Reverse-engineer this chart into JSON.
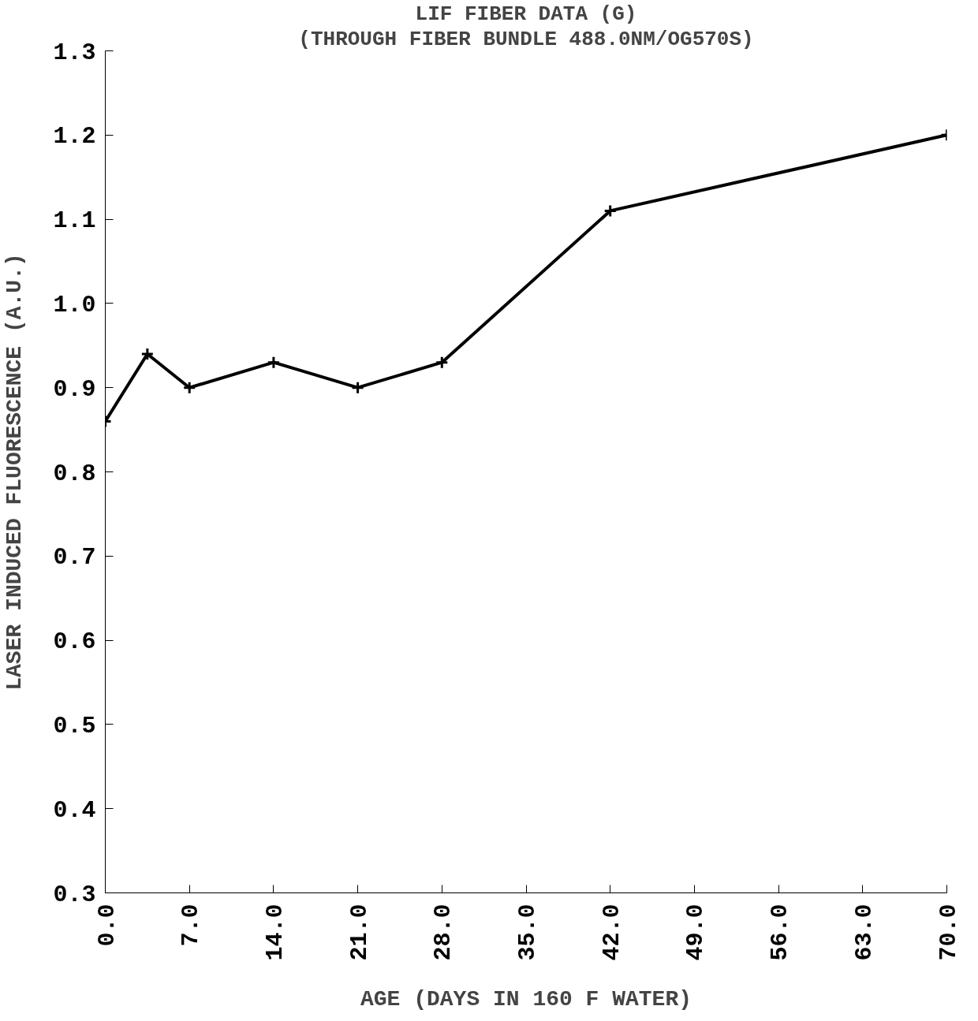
{
  "chart_data": {
    "type": "line",
    "title": "LIF FIBER DATA (G)",
    "subtitle": "(THROUGH FIBER BUNDLE 488.0NM/OG570S)",
    "xlabel": "AGE (DAYS IN 160 F WATER)",
    "ylabel": "LASER INDUCED FLUORESCENCE (A.U.)",
    "x": [
      0,
      3.5,
      7,
      14,
      21,
      28,
      42,
      70
    ],
    "series": [
      {
        "color": "#000000",
        "values": [
          0.86,
          0.94,
          0.9,
          0.93,
          0.9,
          0.93,
          1.11,
          1.2
        ]
      }
    ],
    "xlim": [
      0,
      70
    ],
    "ylim": [
      0.3,
      1.3
    ],
    "xticks": [
      {
        "value": 0,
        "label": "0.0"
      },
      {
        "value": 7,
        "label": "7.0"
      },
      {
        "value": 14,
        "label": "14.0"
      },
      {
        "value": 21,
        "label": "21.0"
      },
      {
        "value": 28,
        "label": "28.0"
      },
      {
        "value": 35,
        "label": "35.0"
      },
      {
        "value": 42,
        "label": "42.0"
      },
      {
        "value": 49,
        "label": "49.0"
      },
      {
        "value": 56,
        "label": "56.0"
      },
      {
        "value": 63,
        "label": "63.0"
      },
      {
        "value": 70,
        "label": "70.0"
      }
    ],
    "yticks": [
      {
        "value": 0.3,
        "label": "0.3"
      },
      {
        "value": 0.4,
        "label": "0.4"
      },
      {
        "value": 0.5,
        "label": "0.5"
      },
      {
        "value": 0.6,
        "label": "0.6"
      },
      {
        "value": 0.7,
        "label": "0.7"
      },
      {
        "value": 0.8,
        "label": "0.8"
      },
      {
        "value": 0.9,
        "label": "0.9"
      },
      {
        "value": 1.0,
        "label": "1.0"
      },
      {
        "value": 1.1,
        "label": "1.1"
      },
      {
        "value": 1.2,
        "label": "1.2"
      },
      {
        "value": 1.3,
        "label": "1.3"
      }
    ],
    "grid": false,
    "marker": "cross",
    "line_style": "solid"
  }
}
